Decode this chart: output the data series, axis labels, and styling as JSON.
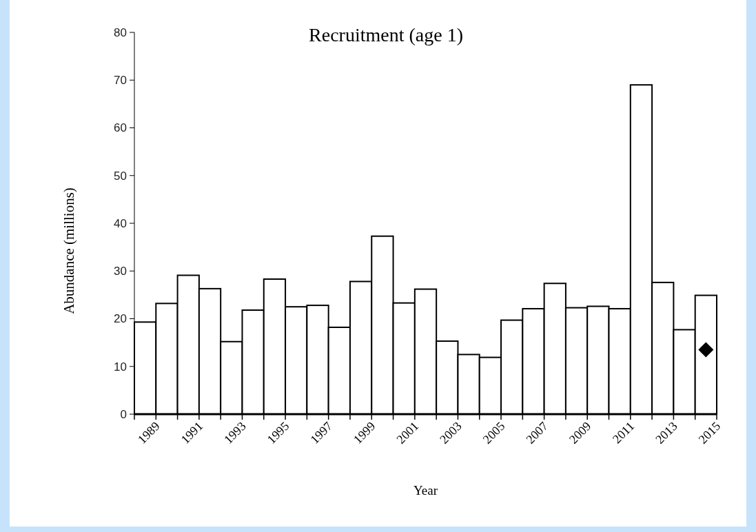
{
  "chart_data": {
    "type": "bar",
    "title": "Recruitment (age 1)",
    "xlabel": "Year",
    "ylabel": "Abundance (millions)",
    "categories": [
      "1989",
      null,
      "1991",
      null,
      "1993",
      null,
      "1995",
      null,
      "1997",
      null,
      "1999",
      null,
      "2001",
      null,
      "2003",
      null,
      "2005",
      null,
      "2007",
      null,
      "2009",
      null,
      "2011",
      null,
      "2013",
      null,
      "2015"
    ],
    "series": [
      {
        "color": "#ffffff",
        "values": [
          19.3,
          23.2,
          29.1,
          26.3,
          15.2,
          21.8,
          28.3,
          22.5,
          22.8,
          18.2,
          27.8,
          37.3,
          23.3,
          26.2,
          15.3,
          12.5,
          11.9,
          19.7,
          22.1,
          27.4,
          22.3,
          22.6,
          22.1,
          69.0,
          27.6,
          17.7,
          24.9
        ]
      },
      {
        "type": "scatter",
        "color": "#000000",
        "marker": "diamond",
        "values": [
          null,
          null,
          null,
          null,
          null,
          null,
          null,
          null,
          null,
          null,
          null,
          null,
          null,
          null,
          null,
          null,
          null,
          null,
          null,
          null,
          null,
          null,
          null,
          null,
          null,
          null,
          13.5
        ]
      }
    ],
    "ylim": [
      0,
      80
    ],
    "yticks": [
      0,
      10,
      20,
      30,
      40,
      50,
      60,
      70,
      80
    ],
    "grid": false
  }
}
